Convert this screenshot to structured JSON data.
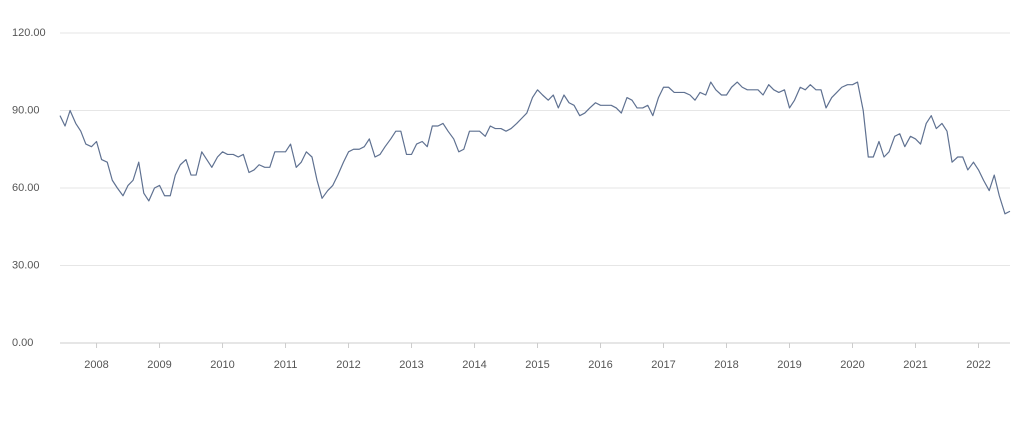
{
  "chart_data": {
    "type": "line",
    "x": [
      2007.42,
      2007.5,
      2007.58,
      2007.67,
      2007.75,
      2007.83,
      2007.92,
      2008,
      2008.08,
      2008.17,
      2008.25,
      2008.33,
      2008.42,
      2008.5,
      2008.58,
      2008.67,
      2008.75,
      2008.83,
      2008.92,
      2009,
      2009.08,
      2009.17,
      2009.25,
      2009.33,
      2009.42,
      2009.5,
      2009.58,
      2009.67,
      2009.75,
      2009.83,
      2009.92,
      2010,
      2010.08,
      2010.17,
      2010.25,
      2010.33,
      2010.42,
      2010.5,
      2010.58,
      2010.67,
      2010.75,
      2010.83,
      2010.92,
      2011,
      2011.08,
      2011.17,
      2011.25,
      2011.33,
      2011.42,
      2011.5,
      2011.58,
      2011.67,
      2011.75,
      2011.83,
      2011.92,
      2012,
      2012.08,
      2012.17,
      2012.25,
      2012.33,
      2012.42,
      2012.5,
      2012.58,
      2012.67,
      2012.75,
      2012.83,
      2012.92,
      2013,
      2013.08,
      2013.17,
      2013.25,
      2013.33,
      2013.42,
      2013.5,
      2013.58,
      2013.67,
      2013.75,
      2013.83,
      2013.92,
      2014,
      2014.08,
      2014.17,
      2014.25,
      2014.33,
      2014.42,
      2014.5,
      2014.58,
      2014.67,
      2014.75,
      2014.83,
      2014.92,
      2015,
      2015.08,
      2015.17,
      2015.25,
      2015.33,
      2015.42,
      2015.5,
      2015.58,
      2015.67,
      2015.75,
      2015.83,
      2015.92,
      2016,
      2016.08,
      2016.17,
      2016.25,
      2016.33,
      2016.42,
      2016.5,
      2016.58,
      2016.67,
      2016.75,
      2016.83,
      2016.92,
      2017,
      2017.08,
      2017.17,
      2017.25,
      2017.33,
      2017.42,
      2017.5,
      2017.58,
      2017.67,
      2017.75,
      2017.83,
      2017.92,
      2018,
      2018.08,
      2018.17,
      2018.25,
      2018.33,
      2018.42,
      2018.5,
      2018.58,
      2018.67,
      2018.75,
      2018.83,
      2018.92,
      2019,
      2019.08,
      2019.17,
      2019.25,
      2019.33,
      2019.42,
      2019.5,
      2019.58,
      2019.67,
      2019.75,
      2019.83,
      2019.92,
      2020,
      2020.08,
      2020.17,
      2020.25,
      2020.33,
      2020.42,
      2020.5,
      2020.58,
      2020.67,
      2020.75,
      2020.83,
      2020.92,
      2021,
      2021.08,
      2021.17,
      2021.25,
      2021.33,
      2021.42,
      2021.5,
      2021.58,
      2021.67,
      2021.75,
      2021.83,
      2021.92,
      2022,
      2022.08,
      2022.17,
      2022.25,
      2022.33,
      2022.42,
      2022.5
    ],
    "series": [
      {
        "color": "#5f7191",
        "values": [
          88,
          84,
          90,
          85,
          82,
          77,
          76,
          78,
          71,
          70,
          63,
          60,
          57,
          61,
          63,
          70,
          58,
          55,
          60,
          61,
          57,
          57,
          65,
          69,
          71,
          65,
          65,
          74,
          71,
          68,
          72,
          74,
          73,
          73,
          72,
          73,
          66,
          67,
          69,
          68,
          68,
          74,
          74,
          74,
          77,
          68,
          70,
          74,
          72,
          63,
          56,
          59,
          61,
          65,
          70,
          74,
          75,
          75,
          76,
          79,
          72,
          73,
          76,
          79,
          82,
          82,
          73,
          73,
          77,
          78,
          76,
          84,
          84,
          85,
          82,
          79,
          74,
          75,
          82,
          82,
          82,
          80,
          84,
          83,
          83,
          82,
          83,
          85,
          87,
          89,
          95,
          98,
          96,
          94,
          96,
          91,
          96,
          93,
          92,
          88,
          89,
          91,
          93,
          92,
          92,
          92,
          91,
          89,
          95,
          94,
          91,
          91,
          92,
          88,
          95,
          99,
          99,
          97,
          97,
          97,
          96,
          94,
          97,
          96,
          101,
          98,
          96,
          96,
          99,
          101,
          99,
          98,
          98,
          98,
          96,
          100,
          98,
          97,
          98,
          91,
          94,
          99,
          98,
          100,
          98,
          98,
          91,
          95,
          97,
          99,
          100,
          100,
          101,
          90,
          72,
          72,
          78,
          72,
          74,
          80,
          81,
          76,
          80,
          79,
          77,
          85,
          88,
          83,
          85,
          82,
          70,
          72,
          72,
          67,
          70,
          67,
          63,
          59,
          65,
          57,
          50,
          51
        ]
      }
    ],
    "xlim": [
      2007.42,
      2022.5
    ],
    "xticks": [
      2008,
      2009,
      2010,
      2011,
      2012,
      2013,
      2014,
      2015,
      2016,
      2017,
      2018,
      2019,
      2020,
      2021,
      2022
    ],
    "ylim": [
      0,
      120
    ],
    "yticks": [
      {
        "value": 0,
        "label": "0.00"
      },
      {
        "value": 30,
        "label": "30.00"
      },
      {
        "value": 60,
        "label": "60.00"
      },
      {
        "value": 90,
        "label": "90.00"
      },
      {
        "value": 120,
        "label": "120.00"
      }
    ],
    "grid": true
  }
}
